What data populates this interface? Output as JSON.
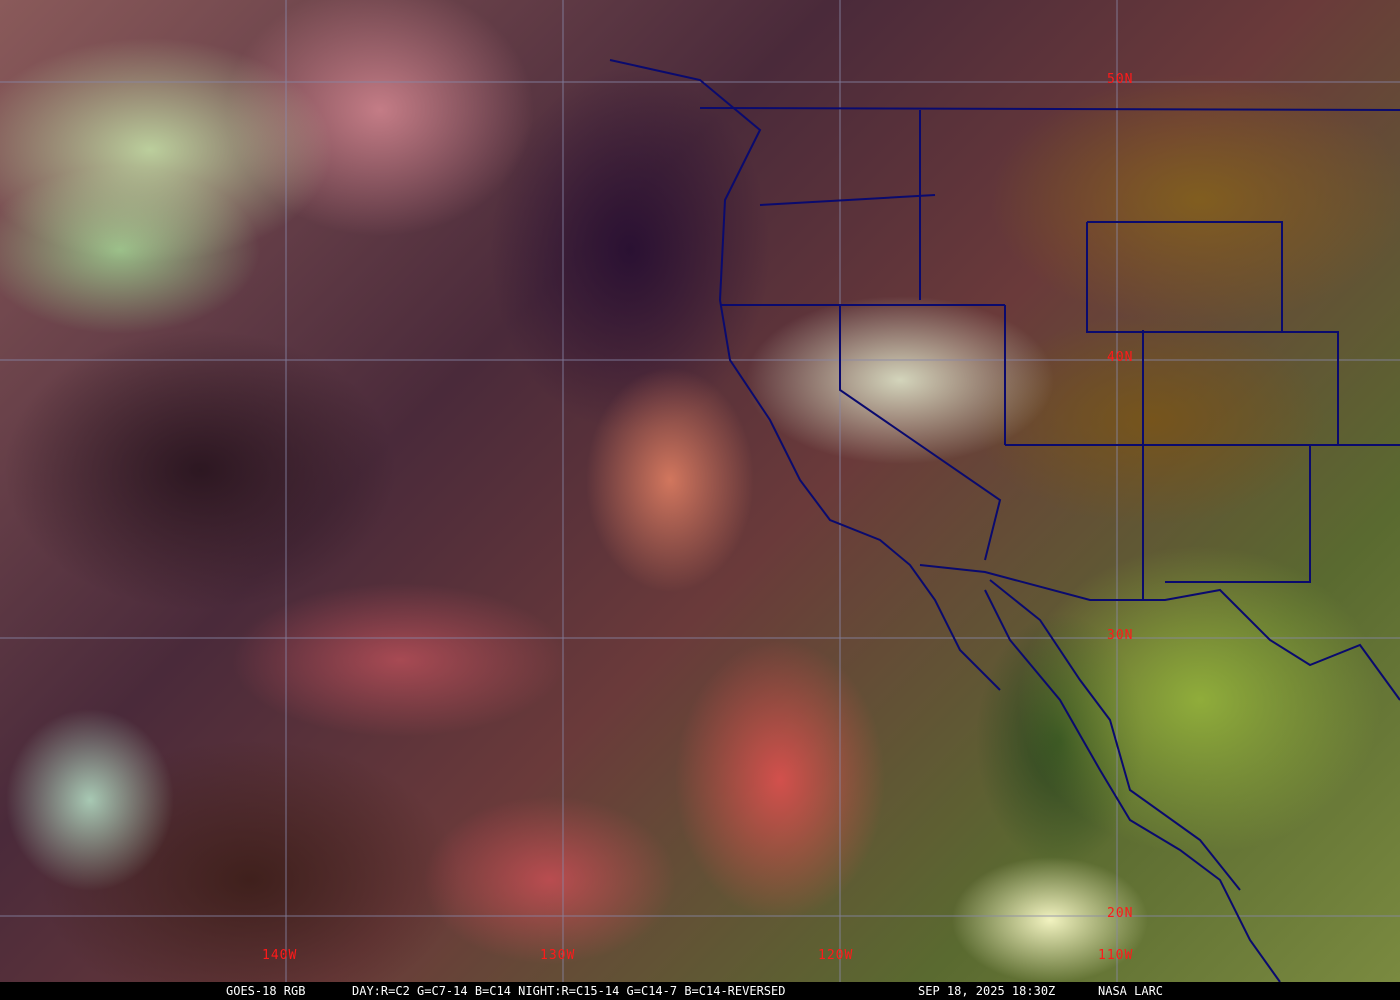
{
  "caption": {
    "product": "GOES-18 RGB",
    "recipe": "DAY:R=C2 G=C7-14 B=C14 NIGHT:R=C15-14 G=C14-7 B=C14-REVERSED",
    "timestamp": "SEP 18, 2025 18:30Z",
    "credit": "NASA LARC"
  },
  "grid": {
    "latitude_labels": [
      "50N",
      "40N",
      "30N",
      "20N"
    ],
    "longitude_labels": [
      "140W",
      "130W",
      "120W",
      "110W"
    ],
    "grid_color": "#8888aa",
    "label_color": "#ff1a1a",
    "boundary_color": "#0a0a6e"
  }
}
